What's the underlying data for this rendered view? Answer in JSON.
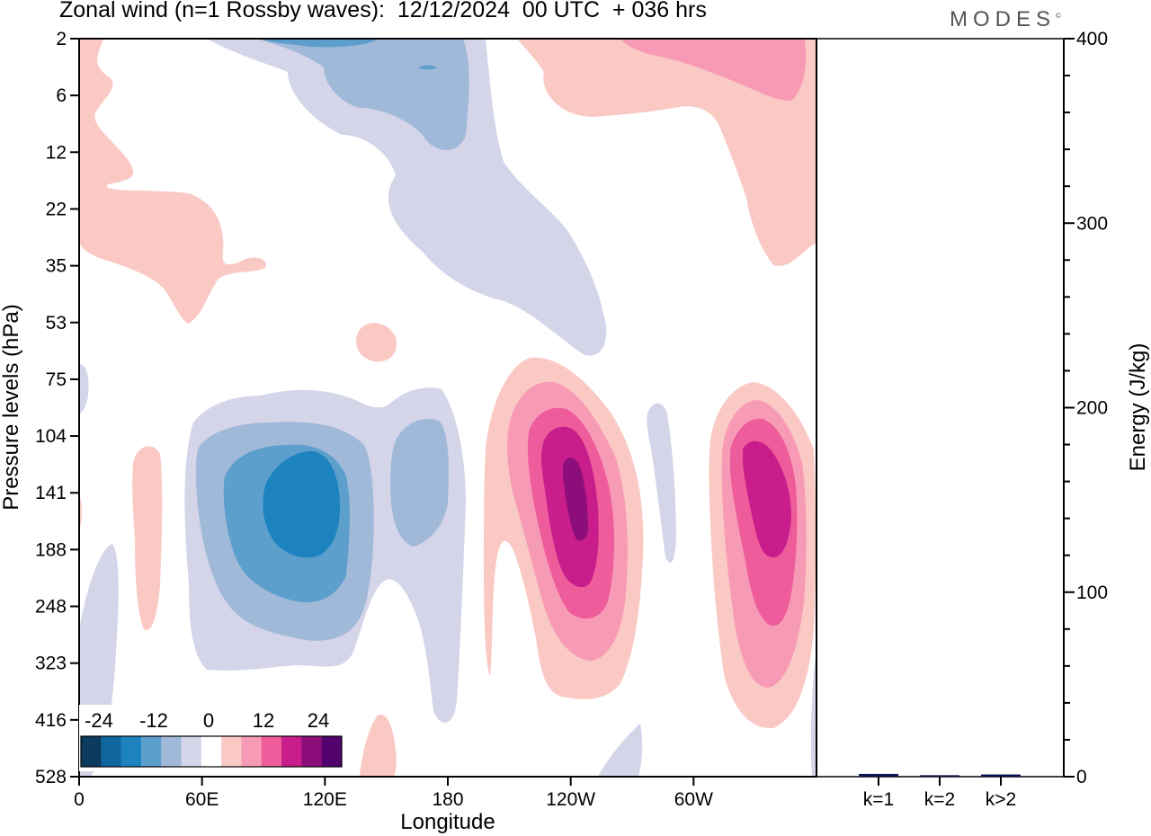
{
  "header": {
    "title": "Zonal wind (n=1 Rossby waves):  12/12/2024  00 UTC  + 036 hrs",
    "brand": "MODES",
    "brand_mark": "©"
  },
  "chart_data": [
    {
      "type": "heatmap",
      "title": "Zonal wind (n=1 Rossby waves):  12/12/2024  00 UTC  + 036 hrs",
      "xlabel": "Longitude",
      "ylabel": "Pressure levels (hPa)",
      "x_tick_labels": [
        "0",
        "60E",
        "120E",
        "180",
        "120W",
        "60W"
      ],
      "x_tick_values_deg": [
        0,
        60,
        120,
        180,
        240,
        300
      ],
      "xlim": [
        0,
        360
      ],
      "y_tick_labels": [
        "2",
        "6",
        "12",
        "22",
        "35",
        "53",
        "75",
        "104",
        "141",
        "188",
        "248",
        "323",
        "416",
        "528"
      ],
      "y_scale": "model levels (top 2 hPa, bottom 528 hPa)",
      "colorbar": {
        "tick_labels": [
          "-24",
          "-12",
          "0",
          "12",
          "24"
        ],
        "colors": [
          "#0b3b5e",
          "#0f659e",
          "#1d83be",
          "#5c9fcc",
          "#a1b9d9",
          "#d4d5e8",
          "#ffffff",
          "#fac9c4",
          "#f79ab6",
          "#ee5c9b",
          "#c81d8a",
          "#8c0e7a",
          "#52026c"
        ]
      },
      "features": [
        {
          "sign": "negative",
          "longitude_deg": 105,
          "pressure_hPa": 141,
          "peak": -18
        },
        {
          "sign": "positive",
          "longitude_deg": 242,
          "pressure_hPa": 141,
          "peak": 26
        },
        {
          "sign": "positive",
          "longitude_deg": 330,
          "pressure_hPa": 141,
          "peak": 22
        },
        {
          "sign": "negative",
          "longitude_deg": 150,
          "pressure_hPa": 141,
          "peak": -6
        }
      ]
    },
    {
      "type": "bar",
      "ylabel": "Energy (J/kg)",
      "categories": [
        "k=1",
        "k=2",
        "k>2"
      ],
      "values": [
        1.5,
        0.8,
        1.2
      ],
      "ylim": [
        0,
        400
      ],
      "y_tick_labels": [
        "0",
        "100",
        "200",
        "300",
        "400"
      ],
      "bar_color": "#0b1550"
    }
  ]
}
